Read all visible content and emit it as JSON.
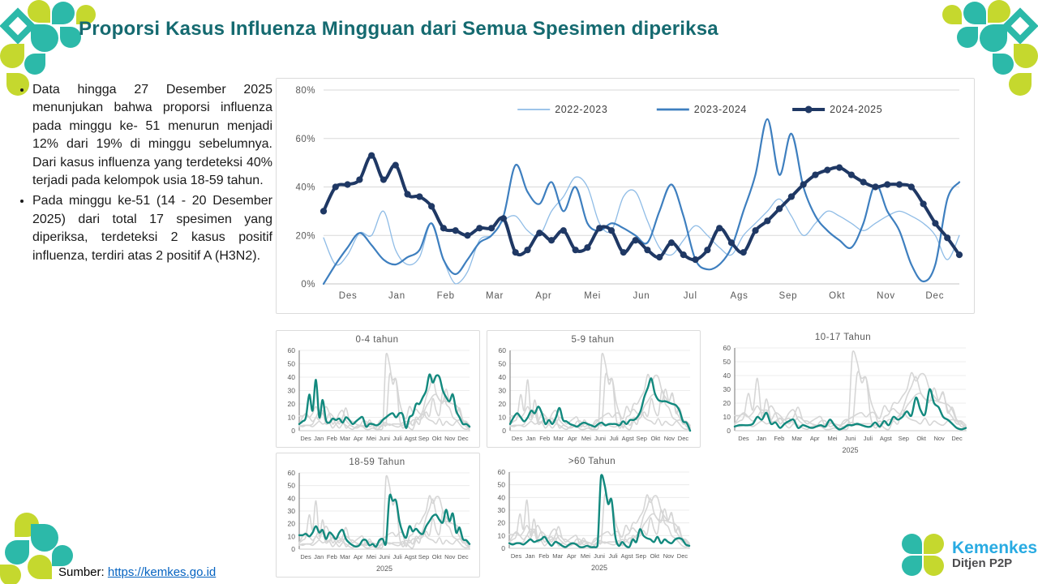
{
  "slide": {
    "title": "Proporsi Kasus Influenza Mingguan dari Semua Spesimen diperiksa",
    "bullets": [
      "Data hingga 27 Desember 2025 menunjukan bahwa proporsi influenza pada minggu ke- 51 menurun menjadi 12% dari 19% di minggu sebelumnya. Dari kasus influenza yang terdeteksi 40% terjadi pada kelompok usia 18-59 tahun.",
      "Pada minggu ke-51 (14 - 20 Desember 2025) dari total 17 spesimen yang diperiksa, terdeteksi 2 kasus positif influenza, terdiri atas 2 positif A (H3N2)."
    ],
    "source": {
      "label": "Sumber: ",
      "link": "https://kemkes.go.id"
    }
  },
  "branding": {
    "kemenkes_name": "Kemenkes",
    "kemenkes_sub": "Ditjen P2P"
  },
  "colors": {
    "title_teal": "#156A70",
    "logo_teal": "#2CB9A9",
    "logo_lime": "#C5D82E",
    "link_blue": "#0563C1",
    "kemenkes_blue": "#29ABE2",
    "kemenkes_gray": "#4D4D4F",
    "axis_text": "#595959",
    "gridline": "#D9D9D9"
  },
  "chart_data": [
    {
      "type": "line",
      "title": "",
      "x_categories": [
        "Des",
        "Jan",
        "Feb",
        "Mar",
        "Apr",
        "Mei",
        "Jun",
        "Jul",
        "Ags",
        "Sep",
        "Okt",
        "Nov",
        "Dec"
      ],
      "ylim": [
        0,
        80
      ],
      "ytick_values": [
        0,
        20,
        40,
        60,
        80
      ],
      "ytick_labels": [
        "0%",
        "20%",
        "40%",
        "60%",
        "80%"
      ],
      "grid": true,
      "legend_position": "top",
      "series": [
        {
          "name": "2022-2023",
          "color": "#8FBCE6",
          "width": 1.3,
          "markers": false,
          "values": [
            19,
            8,
            12,
            21,
            20,
            30,
            14,
            8,
            11,
            25,
            10,
            0,
            5,
            18,
            20,
            26,
            28,
            22,
            20,
            30,
            36,
            44,
            40,
            25,
            22,
            36,
            38,
            26,
            15,
            12,
            18,
            24,
            20,
            15,
            12,
            20,
            25,
            30,
            35,
            28,
            20,
            25,
            30,
            28,
            25,
            22,
            25,
            28,
            30,
            28,
            25,
            20,
            10,
            20
          ]
        },
        {
          "name": "2023-2024",
          "color": "#3E7FBF",
          "width": 2.2,
          "markers": false,
          "values": [
            0,
            8,
            15,
            21,
            16,
            10,
            8,
            11,
            14,
            25,
            10,
            4,
            10,
            17,
            20,
            28,
            49,
            38,
            33,
            42,
            30,
            40,
            25,
            22,
            25,
            23,
            20,
            17,
            30,
            41,
            28,
            10,
            6,
            8,
            15,
            30,
            45,
            68,
            45,
            62,
            40,
            28,
            22,
            18,
            15,
            25,
            41,
            30,
            22,
            8,
            1,
            8,
            35,
            42
          ]
        },
        {
          "name": "2024-2025",
          "color": "#1F3864",
          "width": 4,
          "markers": true,
          "values": [
            30,
            40,
            41,
            43,
            53,
            43,
            49,
            37,
            36,
            32,
            23,
            22,
            20,
            23,
            23,
            27,
            13,
            14,
            21,
            18,
            22,
            14,
            15,
            23,
            22,
            13,
            18,
            14,
            11,
            17,
            12,
            10,
            14,
            23,
            17,
            13,
            22,
            26,
            31,
            36,
            41,
            45,
            47,
            48,
            45,
            42,
            40,
            41,
            41,
            40,
            33,
            25,
            19,
            12
          ]
        }
      ]
    },
    {
      "type": "line",
      "note": "Small multiples by age group; each panel highlights its own series in teal over all age series in gray",
      "x_categories": [
        "Des",
        "Jan",
        "Feb",
        "Mar",
        "Apr",
        "Mei",
        "Juni",
        "Juli",
        "Agst",
        "Sep",
        "Okt",
        "Nov",
        "Dec"
      ],
      "ylim": [
        0,
        60
      ],
      "ytick_values": [
        0,
        10,
        20,
        30,
        40,
        50,
        60
      ],
      "year_label": "2025",
      "highlight_color": "#12897E",
      "background_series_color": "#D6D6D6",
      "panels": [
        {
          "title": "0-4 tahun",
          "series_key": "age_0_4",
          "shows_year_label": false
        },
        {
          "title": "5-9 tahun",
          "series_key": "age_5_9",
          "shows_year_label": false
        },
        {
          "title": "10-17 Tahun",
          "series_key": "age_10_17",
          "shows_year_label": true
        },
        {
          "title": "18-59 Tahun",
          "series_key": "age_18_59",
          "shows_year_label": true
        },
        {
          "title": ">60 Tahun",
          "series_key": "age_60",
          "shows_year_label": true
        }
      ],
      "series_by_age": {
        "age_0_4": [
          5,
          7,
          10,
          27,
          15,
          38,
          10,
          23,
          8,
          6,
          9,
          8,
          9,
          6,
          10,
          8,
          5,
          7,
          9,
          10,
          3,
          5,
          5,
          4,
          5,
          8,
          10,
          12,
          13,
          10,
          13,
          12,
          2,
          10,
          12,
          20,
          20,
          25,
          30,
          42,
          36,
          41,
          40,
          30,
          25,
          22,
          27,
          15,
          10,
          5,
          5,
          3
        ],
        "age_5_9": [
          5,
          10,
          13,
          10,
          7,
          10,
          15,
          13,
          18,
          13,
          5,
          8,
          5,
          10,
          17,
          8,
          7,
          5,
          4,
          3,
          5,
          6,
          5,
          4,
          3,
          5,
          6,
          4,
          5,
          5,
          5,
          4,
          7,
          5,
          8,
          8,
          10,
          15,
          25,
          32,
          39,
          28,
          23,
          22,
          22,
          21,
          20,
          19,
          15,
          7,
          6,
          0
        ],
        "age_10_17": [
          3,
          4,
          4,
          4,
          5,
          10,
          8,
          13,
          5,
          6,
          2,
          5,
          7,
          8,
          2,
          4,
          3,
          2,
          3,
          4,
          3,
          8,
          4,
          1,
          2,
          4,
          4,
          5,
          4,
          3,
          3,
          6,
          3,
          7,
          4,
          10,
          8,
          10,
          14,
          11,
          24,
          15,
          12,
          30,
          20,
          17,
          10,
          8,
          5,
          2,
          1,
          2
        ],
        "age_18_59": [
          11,
          11,
          12,
          10,
          13,
          18,
          13,
          15,
          8,
          13,
          11,
          8,
          13,
          15,
          8,
          5,
          3,
          2,
          3,
          7,
          7,
          3,
          4,
          2,
          7,
          8,
          5,
          41,
          38,
          38,
          22,
          13,
          9,
          18,
          14,
          16,
          13,
          12,
          18,
          22,
          26,
          27,
          23,
          21,
          31,
          22,
          28,
          13,
          17,
          8,
          7,
          4
        ],
        "age_60": [
          4,
          3,
          4,
          4,
          3,
          5,
          7,
          5,
          6,
          7,
          9,
          5,
          2,
          5,
          4,
          2,
          1,
          3,
          4,
          3,
          1,
          1,
          2,
          1,
          1,
          2,
          57,
          50,
          35,
          38,
          10,
          2,
          5,
          2,
          1,
          7,
          5,
          15,
          10,
          8,
          7,
          5,
          9,
          4,
          7,
          5,
          4,
          7,
          8,
          7,
          3,
          2
        ]
      }
    }
  ]
}
